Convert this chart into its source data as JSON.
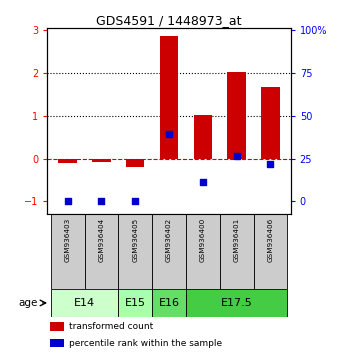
{
  "title": "GDS4591 / 1448973_at",
  "samples": [
    "GSM936403",
    "GSM936404",
    "GSM936405",
    "GSM936402",
    "GSM936400",
    "GSM936401",
    "GSM936406"
  ],
  "transformed_count": [
    -0.1,
    -0.07,
    -0.2,
    2.88,
    1.02,
    2.02,
    1.68
  ],
  "percentile_rank_scaled": [
    -1.0,
    -1.0,
    -1.0,
    0.58,
    -0.55,
    0.07,
    -0.12
  ],
  "bar_color": "#cc0000",
  "dot_color": "#0000cc",
  "dashed_line_color": "#cc0000",
  "ylim": [
    -1.3,
    3.05
  ],
  "yticks_left": [
    -1,
    0,
    1,
    2,
    3
  ],
  "right_tick_positions": [
    -1.0,
    0.0,
    1.0,
    2.0,
    3.0
  ],
  "right_axis_labels": [
    "0",
    "25",
    "50",
    "75",
    "100%"
  ],
  "dotted_lines": [
    1,
    2
  ],
  "age_groups": [
    {
      "label": "E14",
      "start": 0,
      "end": 2,
      "color": "#ccffcc"
    },
    {
      "label": "E15",
      "start": 2,
      "end": 3,
      "color": "#aaffaa"
    },
    {
      "label": "E16",
      "start": 3,
      "end": 4,
      "color": "#66dd66"
    },
    {
      "label": "E17.5",
      "start": 4,
      "end": 7,
      "color": "#44cc44"
    }
  ],
  "sample_bg_color": "#cccccc",
  "legend_items": [
    {
      "label": "transformed count",
      "color": "#cc0000"
    },
    {
      "label": "percentile rank within the sample",
      "color": "#0000cc"
    }
  ]
}
